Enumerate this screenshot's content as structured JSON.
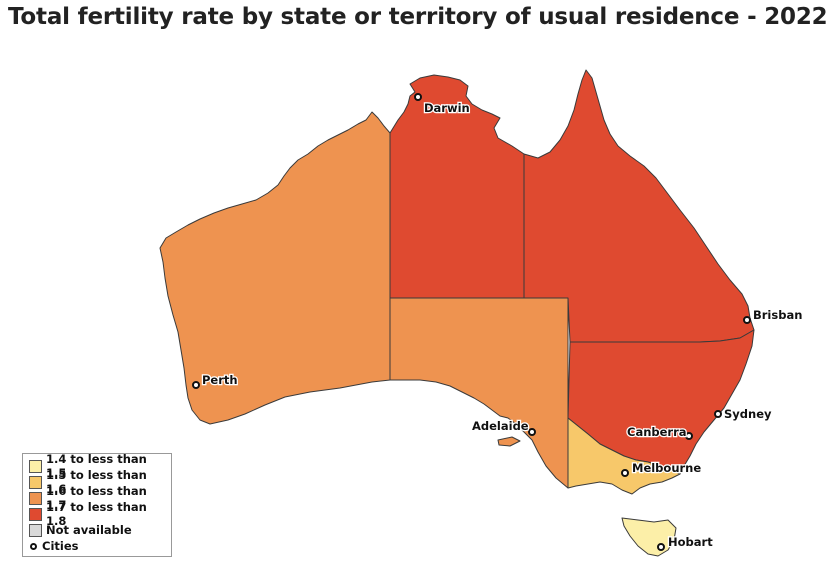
{
  "title": "Total fertility rate by state or territory of usual residence - 2022",
  "colors": {
    "band_1": "#FCEFA8",
    "band_2": "#F7C86A",
    "band_3": "#EE9350",
    "band_4": "#DF4A30",
    "not_available": "#D9D9D9",
    "border": "#3a3a3a"
  },
  "regions": [
    {
      "name": "Western Australia",
      "band": "1.6 to less than 1.7"
    },
    {
      "name": "Northern Territory",
      "band": "1.7 to less than 1.8"
    },
    {
      "name": "South Australia",
      "band": "1.6 to less than 1.7"
    },
    {
      "name": "Queensland",
      "band": "1.7 to less than 1.8"
    },
    {
      "name": "New South Wales",
      "band": "1.7 to less than 1.8"
    },
    {
      "name": "Victoria",
      "band": "1.5 to less than 1.6"
    },
    {
      "name": "Tasmania",
      "band": "1.4 to less than 1.5"
    }
  ],
  "cities": {
    "darwin": "Darwin",
    "perth": "Perth",
    "adelaide": "Adelaide",
    "melbourne": "Melbourne",
    "canberra": "Canberra",
    "sydney": "Sydney",
    "brisbane": "Brisban",
    "hobart": "Hobart"
  },
  "legend": {
    "items": [
      {
        "label": "1.4 to less than 1.5",
        "color": "#FCEFA8"
      },
      {
        "label": "1.5 to less than 1.6",
        "color": "#F7C86A"
      },
      {
        "label": "1.6 to less than 1.7",
        "color": "#EE9350"
      },
      {
        "label": "1.7 to less than 1.8",
        "color": "#DF4A30"
      },
      {
        "label": "Not available",
        "color": "#D9D9D9"
      }
    ],
    "cities_label": "Cities"
  }
}
